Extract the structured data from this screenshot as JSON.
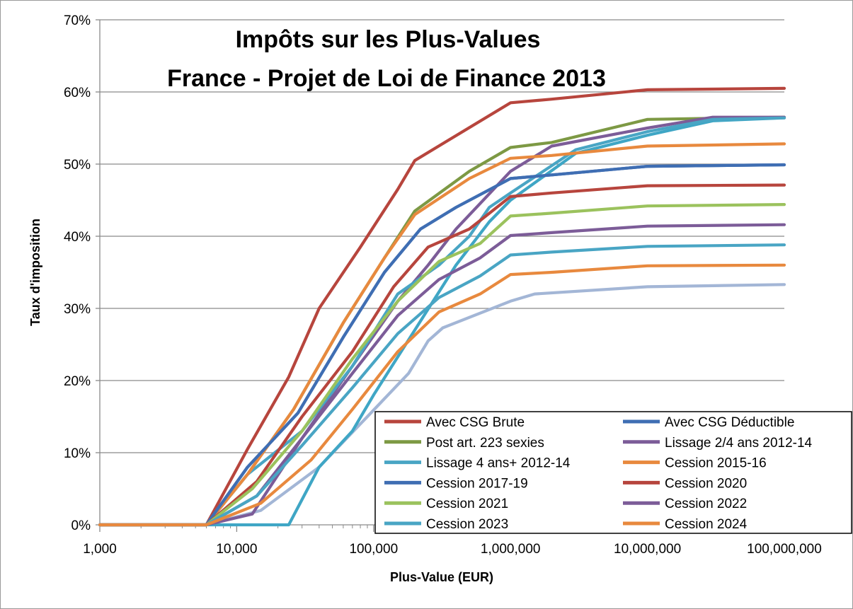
{
  "chart_data": {
    "type": "line",
    "title": [
      "Impôts sur les Plus-Values",
      "France - Projet de Loi de Finance 2013"
    ],
    "xlabel": "Plus-Value (EUR)",
    "ylabel": "Taux d'imposition",
    "xscale": "log",
    "xlim": [
      1000,
      100000000
    ],
    "ylim": [
      0,
      70
    ],
    "x_ticks": [
      {
        "value": 1000,
        "label": "1,000"
      },
      {
        "value": 10000,
        "label": "10,000"
      },
      {
        "value": 100000,
        "label": "100,000"
      },
      {
        "value": 1000000,
        "label": "1,000,000"
      },
      {
        "value": 10000000,
        "label": "10,000,000"
      },
      {
        "value": 100000000,
        "label": "100,000,000"
      }
    ],
    "y_ticks": [
      {
        "value": 0,
        "label": "0%"
      },
      {
        "value": 10,
        "label": "10%"
      },
      {
        "value": 20,
        "label": "20%"
      },
      {
        "value": 30,
        "label": "30%"
      },
      {
        "value": 40,
        "label": "40%"
      },
      {
        "value": 50,
        "label": "50%"
      },
      {
        "value": 60,
        "label": "60%"
      },
      {
        "value": 70,
        "label": "70%"
      }
    ],
    "grid": "horizontal",
    "legend_position": "bottom-right",
    "series": [
      {
        "name": "Avec CSG Brute",
        "color": "#B7453D",
        "points": [
          [
            1000,
            0
          ],
          [
            6000,
            0
          ],
          [
            12000,
            10.5
          ],
          [
            24000,
            20.5
          ],
          [
            40000,
            30
          ],
          [
            80000,
            38.5
          ],
          [
            150000,
            46.5
          ],
          [
            200000,
            50.5
          ],
          [
            1000000,
            58.5
          ],
          [
            2000000,
            59
          ],
          [
            10000000,
            60.3
          ],
          [
            100000000,
            60.5
          ]
        ]
      },
      {
        "name": "Avec CSG Déductible",
        "color": "#3F6EB3",
        "points": [
          [
            1000,
            0
          ],
          [
            6000,
            0
          ],
          [
            12000,
            8
          ],
          [
            28000,
            15.5
          ],
          [
            60000,
            26
          ],
          [
            120000,
            35
          ],
          [
            220000,
            41
          ],
          [
            400000,
            44
          ],
          [
            1000000,
            48
          ],
          [
            2000000,
            48.5
          ],
          [
            10000000,
            49.7
          ],
          [
            100000000,
            49.9
          ]
        ]
      },
      {
        "name": "Post art. 223 sexies",
        "color": "#7D9944",
        "points": [
          [
            1000,
            0
          ],
          [
            6000,
            0
          ],
          [
            12000,
            7
          ],
          [
            26000,
            16
          ],
          [
            60000,
            28
          ],
          [
            120000,
            37
          ],
          [
            200000,
            43.5
          ],
          [
            500000,
            49
          ],
          [
            1000000,
            52.3
          ],
          [
            2000000,
            53
          ],
          [
            10000000,
            56.2
          ],
          [
            100000000,
            56.5
          ]
        ]
      },
      {
        "name": "Lissage 2/4 ans 2012-14",
        "color": "#7C5C98",
        "points": [
          [
            1000,
            0
          ],
          [
            6000,
            0
          ],
          [
            13000,
            1.5
          ],
          [
            30000,
            12
          ],
          [
            70000,
            22
          ],
          [
            150000,
            31
          ],
          [
            250000,
            36
          ],
          [
            400000,
            41
          ],
          [
            1000000,
            49
          ],
          [
            2000000,
            52.5
          ],
          [
            10000000,
            55
          ],
          [
            30000000,
            56.5
          ],
          [
            100000000,
            56.5
          ]
        ]
      },
      {
        "name": "Lissage 4 ans+ 2012-14",
        "color": "#49A5C4",
        "points": [
          [
            1000,
            0
          ],
          [
            6000,
            0
          ],
          [
            12000,
            7
          ],
          [
            30000,
            13
          ],
          [
            70000,
            22
          ],
          [
            150000,
            32
          ],
          [
            300000,
            36
          ],
          [
            500000,
            40
          ],
          [
            700000,
            44
          ],
          [
            1000000,
            46
          ],
          [
            3000000,
            52
          ],
          [
            10000000,
            54.5
          ],
          [
            30000000,
            56.2
          ],
          [
            100000000,
            56.4
          ]
        ]
      },
      {
        "name": "Cession 2015-16",
        "color": "#E8893E",
        "points": [
          [
            1000,
            0
          ],
          [
            6000,
            0
          ],
          [
            12000,
            7
          ],
          [
            26000,
            16
          ],
          [
            60000,
            28
          ],
          [
            120000,
            37
          ],
          [
            200000,
            43
          ],
          [
            500000,
            48
          ],
          [
            1000000,
            50.8
          ],
          [
            2000000,
            51.2
          ],
          [
            10000000,
            52.5
          ],
          [
            100000000,
            52.8
          ]
        ]
      },
      {
        "name": "Cession 2017-19",
        "color": "#3F6EB3",
        "points": [
          [
            1000,
            0
          ],
          [
            6000,
            0
          ],
          [
            12000,
            8
          ],
          [
            28000,
            15.5
          ],
          [
            60000,
            26
          ],
          [
            120000,
            35
          ],
          [
            220000,
            41
          ],
          [
            400000,
            44
          ],
          [
            1000000,
            48
          ],
          [
            2000000,
            48.5
          ],
          [
            10000000,
            49.7
          ],
          [
            100000000,
            49.9
          ]
        ]
      },
      {
        "name": "Cession 2020",
        "color": "#B7453D",
        "points": [
          [
            1000,
            0
          ],
          [
            6000,
            0
          ],
          [
            14000,
            6
          ],
          [
            30000,
            15
          ],
          [
            70000,
            24
          ],
          [
            140000,
            33
          ],
          [
            250000,
            38.5
          ],
          [
            500000,
            41
          ],
          [
            1000000,
            45.5
          ],
          [
            2000000,
            46
          ],
          [
            10000000,
            47
          ],
          [
            100000000,
            47.1
          ]
        ]
      },
      {
        "name": "Cession 2021",
        "color": "#9BC25D",
        "points": [
          [
            1000,
            0
          ],
          [
            6000,
            0
          ],
          [
            13000,
            5
          ],
          [
            30000,
            13
          ],
          [
            70000,
            23
          ],
          [
            150000,
            31
          ],
          [
            300000,
            36.5
          ],
          [
            600000,
            39
          ],
          [
            1000000,
            42.8
          ],
          [
            2000000,
            43.2
          ],
          [
            10000000,
            44.2
          ],
          [
            100000000,
            44.4
          ]
        ]
      },
      {
        "name": "Cession 2022",
        "color": "#7C5C98",
        "points": [
          [
            1000,
            0
          ],
          [
            6000,
            0
          ],
          [
            14000,
            4
          ],
          [
            30000,
            12
          ],
          [
            70000,
            21
          ],
          [
            150000,
            29
          ],
          [
            300000,
            34
          ],
          [
            600000,
            37
          ],
          [
            1000000,
            40.1
          ],
          [
            2000000,
            40.5
          ],
          [
            10000000,
            41.4
          ],
          [
            100000000,
            41.6
          ]
        ]
      },
      {
        "name": "Cession 2023",
        "color": "#49A5C4",
        "points": [
          [
            1000,
            0
          ],
          [
            6000,
            0
          ],
          [
            14000,
            4
          ],
          [
            30000,
            11
          ],
          [
            70000,
            19
          ],
          [
            150000,
            26.5
          ],
          [
            300000,
            31.5
          ],
          [
            600000,
            34.5
          ],
          [
            1000000,
            37.4
          ],
          [
            2000000,
            37.8
          ],
          [
            10000000,
            38.6
          ],
          [
            100000000,
            38.8
          ]
        ]
      },
      {
        "name": "Cession 2024",
        "color": "#E8893E",
        "points": [
          [
            1000,
            0
          ],
          [
            6000,
            0
          ],
          [
            15000,
            3
          ],
          [
            35000,
            9
          ],
          [
            70000,
            16
          ],
          [
            150000,
            24
          ],
          [
            300000,
            29.5
          ],
          [
            600000,
            32
          ],
          [
            1000000,
            34.7
          ],
          [
            2000000,
            35
          ],
          [
            10000000,
            35.9
          ],
          [
            100000000,
            36
          ]
        ]
      },
      {
        "name": "",
        "color": "#A3B6D6",
        "legend": false,
        "points": [
          [
            1000,
            0
          ],
          [
            6000,
            0
          ],
          [
            15000,
            2
          ],
          [
            40000,
            8
          ],
          [
            90000,
            15
          ],
          [
            180000,
            21
          ],
          [
            250000,
            25.5
          ],
          [
            320000,
            27.3
          ],
          [
            1000000,
            31
          ],
          [
            1500000,
            32
          ],
          [
            10000000,
            33
          ],
          [
            100000000,
            33.3
          ]
        ]
      },
      {
        "name": "",
        "color": "#3FA6C5",
        "legend": false,
        "points": [
          [
            1000,
            0
          ],
          [
            10000,
            0
          ],
          [
            24000,
            0
          ],
          [
            40000,
            8
          ],
          [
            70000,
            13
          ],
          [
            100000,
            18
          ],
          [
            200000,
            27
          ],
          [
            400000,
            36
          ],
          [
            700000,
            42
          ],
          [
            1000000,
            45
          ],
          [
            3000000,
            51.5
          ],
          [
            10000000,
            54
          ],
          [
            30000000,
            56
          ],
          [
            100000000,
            56.4
          ]
        ]
      }
    ]
  }
}
